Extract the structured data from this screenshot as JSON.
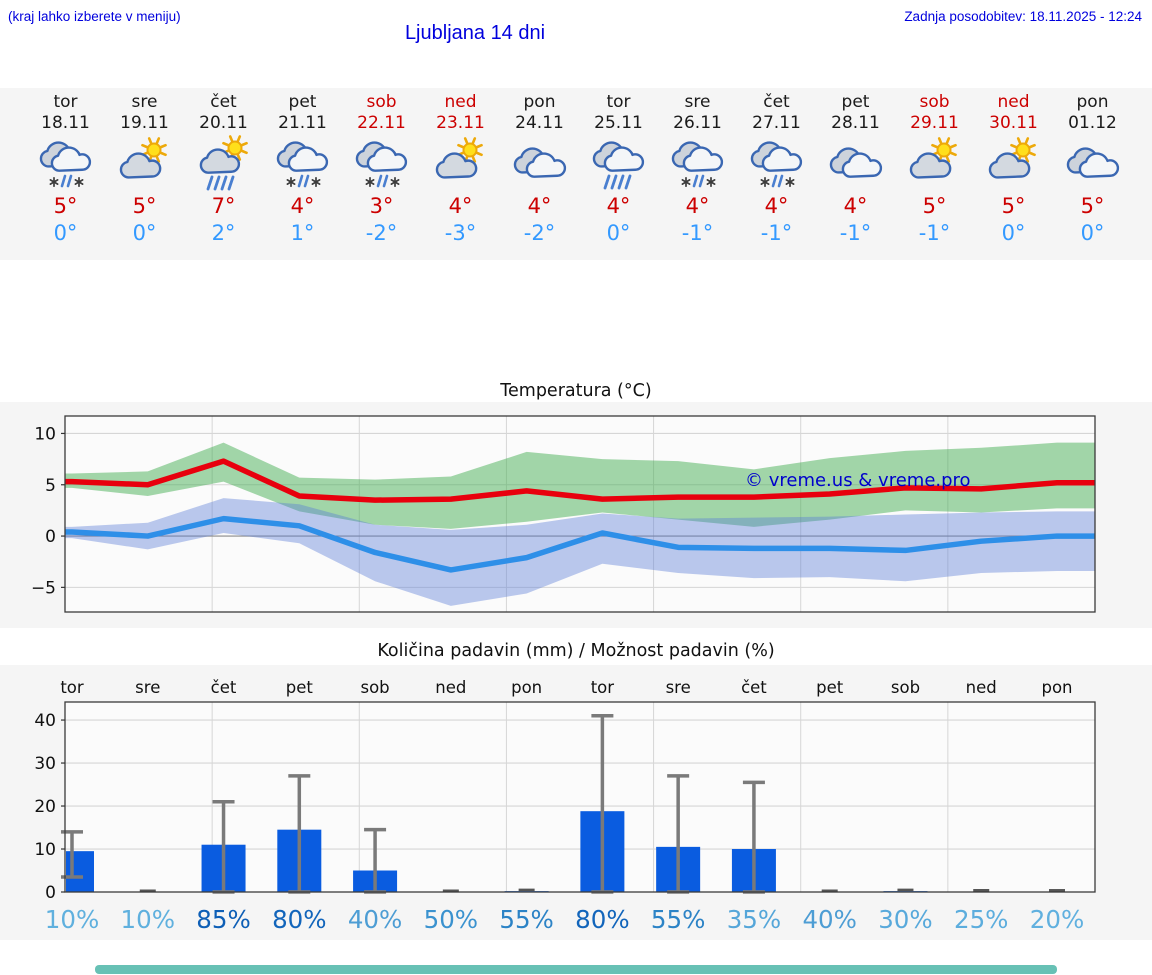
{
  "header": {
    "menu_hint": "(kraj lahko izberete v meniju)",
    "title": "Ljubljana 14 dni",
    "last_update": "Zadnja posodobitev: 18.11.2025 - 12:24"
  },
  "colors": {
    "header_text": "#0000dd",
    "high_temp": "#cc0000",
    "low_temp": "#3399ff",
    "weekend_text": "#cc0000",
    "weekday_text": "#1a1a1a",
    "strip_background": "#f5f5f5",
    "scrollbar": "#67c1b5"
  },
  "forecast_days": [
    {
      "day": "tor",
      "date": "18.11",
      "icon": "cloud-sleet-icon",
      "high": "5°",
      "low": "0°",
      "weekend": false
    },
    {
      "day": "sre",
      "date": "19.11",
      "icon": "sun-cloud-icon",
      "high": "5°",
      "low": "0°",
      "weekend": false
    },
    {
      "day": "čet",
      "date": "20.11",
      "icon": "sun-cloud-rain-icon",
      "high": "7°",
      "low": "2°",
      "weekend": false
    },
    {
      "day": "pet",
      "date": "21.11",
      "icon": "cloud-sleet-icon",
      "high": "4°",
      "low": "1°",
      "weekend": false
    },
    {
      "day": "sob",
      "date": "22.11",
      "icon": "cloud-sleet-icon",
      "high": "3°",
      "low": "-2°",
      "weekend": true
    },
    {
      "day": "ned",
      "date": "23.11",
      "icon": "sun-cloud-icon",
      "high": "4°",
      "low": "-3°",
      "weekend": true
    },
    {
      "day": "pon",
      "date": "24.11",
      "icon": "cloudy-icon",
      "high": "4°",
      "low": "-2°",
      "weekend": false
    },
    {
      "day": "tor",
      "date": "25.11",
      "icon": "cloud-rain-icon",
      "high": "4°",
      "low": "0°",
      "weekend": false
    },
    {
      "day": "sre",
      "date": "26.11",
      "icon": "cloud-sleet-icon",
      "high": "4°",
      "low": "-1°",
      "weekend": false
    },
    {
      "day": "čet",
      "date": "27.11",
      "icon": "cloud-sleet-icon",
      "high": "4°",
      "low": "-1°",
      "weekend": false
    },
    {
      "day": "pet",
      "date": "28.11",
      "icon": "cloudy-icon",
      "high": "4°",
      "low": "-1°",
      "weekend": false
    },
    {
      "day": "sob",
      "date": "29.11",
      "icon": "sun-cloud-icon",
      "high": "5°",
      "low": "-1°",
      "weekend": true
    },
    {
      "day": "ned",
      "date": "30.11",
      "icon": "sun-cloud-icon",
      "high": "5°",
      "low": "0°",
      "weekend": true
    },
    {
      "day": "pon",
      "date": "01.12",
      "icon": "cloudy-icon",
      "high": "5°",
      "low": "0°",
      "weekend": false
    }
  ],
  "chart_data": [
    {
      "type": "line",
      "title": "Temperatura (°C)",
      "watermark": "© vreme.us & vreme.pro",
      "ylim": [
        -7.4,
        11.7
      ],
      "ytick_values": [
        10,
        5,
        0,
        -5
      ],
      "ytick_labels": [
        "10",
        "5",
        "0",
        "−5"
      ],
      "grid": true,
      "x_days": 14,
      "series": [
        {
          "name": "max-temp",
          "color": "#e8000d",
          "values": [
            5.3,
            5.0,
            7.3,
            3.9,
            3.5,
            3.6,
            4.4,
            3.6,
            3.8,
            3.8,
            4.1,
            4.7,
            4.6,
            5.2
          ]
        },
        {
          "name": "min-temp",
          "color": "#2e8fe8",
          "values": [
            0.4,
            0.0,
            1.7,
            1.0,
            -1.6,
            -3.3,
            -2.1,
            0.3,
            -1.1,
            -1.2,
            -1.2,
            -1.4,
            -0.5,
            0.0
          ]
        }
      ],
      "bands": [
        {
          "name": "max-temp-range",
          "color": "rgba(62,172,78,0.48)",
          "upper": [
            6.1,
            6.3,
            9.1,
            5.7,
            5.5,
            5.8,
            8.2,
            7.5,
            7.3,
            6.5,
            7.6,
            8.3,
            8.6,
            9.1
          ],
          "lower": [
            4.7,
            3.9,
            5.3,
            2.4,
            1.1,
            0.7,
            1.4,
            2.3,
            1.6,
            0.9,
            1.6,
            2.5,
            2.3,
            2.7
          ]
        },
        {
          "name": "min-temp-range",
          "color": "rgba(88,122,216,0.40)",
          "upper": [
            0.9,
            1.3,
            3.7,
            3.1,
            1.1,
            0.6,
            1.1,
            2.2,
            1.7,
            1.8,
            1.9,
            2.1,
            2.3,
            2.4
          ],
          "lower": [
            -0.2,
            -1.3,
            0.3,
            -0.7,
            -4.4,
            -6.8,
            -5.6,
            -2.7,
            -3.6,
            -4.1,
            -4.0,
            -4.4,
            -3.6,
            -3.4
          ]
        }
      ]
    },
    {
      "type": "bar",
      "title": "Količina padavin (mm) / Možnost padavin (%)",
      "categories": [
        "tor",
        "sre",
        "čet",
        "pet",
        "sob",
        "ned",
        "pon",
        "tor",
        "sre",
        "čet",
        "pet",
        "sob",
        "ned",
        "pon"
      ],
      "values": [
        9.5,
        0,
        11,
        14.5,
        5,
        0,
        0.2,
        18.8,
        10.5,
        10,
        0,
        0.2,
        0.1,
        0.1
      ],
      "whisker_high": [
        14,
        0.3,
        21,
        27,
        14.5,
        0.3,
        0.5,
        41,
        27,
        25.5,
        0.3,
        0.5,
        0.4,
        0.4
      ],
      "whisker_low": [
        3.5,
        0,
        0,
        0,
        0,
        0,
        0,
        0,
        0,
        0,
        0,
        0,
        0,
        0
      ],
      "ylim": [
        0,
        44.2
      ],
      "ytick_values": [
        0,
        10,
        20,
        30,
        40
      ],
      "ytick_labels": [
        "0",
        "10",
        "20",
        "30",
        "40"
      ],
      "grid": true,
      "bar_color": "#0a5ce0",
      "whisker_color": "#7a7a7a",
      "probabilities": [
        {
          "label": "10%",
          "color": "#5fb0de"
        },
        {
          "label": "10%",
          "color": "#5fb0de"
        },
        {
          "label": "85%",
          "color": "#0e5fb6"
        },
        {
          "label": "80%",
          "color": "#1265bb"
        },
        {
          "label": "40%",
          "color": "#4d9dd4"
        },
        {
          "label": "50%",
          "color": "#3a92cf"
        },
        {
          "label": "55%",
          "color": "#2c83c6"
        },
        {
          "label": "80%",
          "color": "#1265bb"
        },
        {
          "label": "55%",
          "color": "#2c83c6"
        },
        {
          "label": "35%",
          "color": "#55a6d9"
        },
        {
          "label": "40%",
          "color": "#4d9dd4"
        },
        {
          "label": "30%",
          "color": "#58a9db"
        },
        {
          "label": "25%",
          "color": "#5caddd"
        },
        {
          "label": "20%",
          "color": "#60b0df"
        }
      ]
    }
  ]
}
